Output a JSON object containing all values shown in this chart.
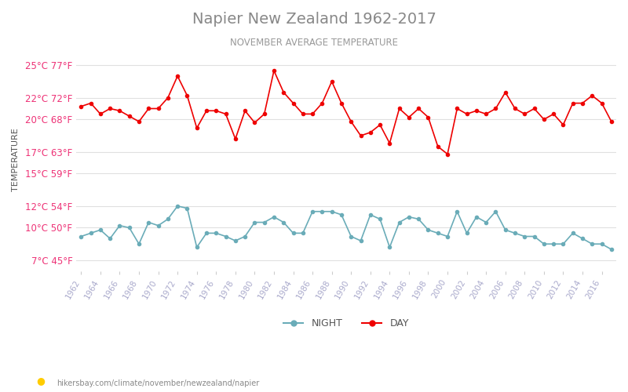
{
  "title": "Napier New Zealand 1962-2017",
  "subtitle": "NOVEMBER AVERAGE TEMPERATURE",
  "ylabel": "TEMPERATURE",
  "years": [
    1962,
    1963,
    1964,
    1965,
    1966,
    1967,
    1968,
    1969,
    1970,
    1971,
    1972,
    1973,
    1974,
    1975,
    1976,
    1977,
    1978,
    1979,
    1980,
    1981,
    1982,
    1983,
    1984,
    1985,
    1986,
    1987,
    1988,
    1989,
    1990,
    1991,
    1992,
    1993,
    1994,
    1995,
    1996,
    1997,
    1998,
    1999,
    2000,
    2001,
    2002,
    2003,
    2004,
    2005,
    2006,
    2007,
    2008,
    2009,
    2010,
    2011,
    2012,
    2013,
    2014,
    2015,
    2016,
    2017
  ],
  "day_temps": [
    21.2,
    21.5,
    20.5,
    21.0,
    20.8,
    20.3,
    19.8,
    21.0,
    21.0,
    22.0,
    24.0,
    22.2,
    19.2,
    20.8,
    20.8,
    20.5,
    18.2,
    20.8,
    19.7,
    20.5,
    24.5,
    22.5,
    21.5,
    20.5,
    20.5,
    21.5,
    23.5,
    21.5,
    19.8,
    18.5,
    18.8,
    19.5,
    17.8,
    21.0,
    20.2,
    21.0,
    20.2,
    17.5,
    16.8,
    21.0,
    20.5,
    20.8,
    20.5,
    21.0,
    22.5,
    21.0,
    20.5,
    21.0,
    20.0,
    20.5,
    19.5,
    21.5,
    21.5,
    22.2,
    21.5,
    19.8
  ],
  "night_temps": [
    9.2,
    9.5,
    9.8,
    9.0,
    10.2,
    10.0,
    8.5,
    10.5,
    10.2,
    10.8,
    12.0,
    11.8,
    8.2,
    9.5,
    9.5,
    9.2,
    8.8,
    9.2,
    10.5,
    10.5,
    11.0,
    10.5,
    9.5,
    9.5,
    11.5,
    11.5,
    11.5,
    11.2,
    9.2,
    8.8,
    11.2,
    10.8,
    8.2,
    10.5,
    11.0,
    10.8,
    9.8,
    9.5,
    9.2,
    11.5,
    9.5,
    11.0,
    10.5,
    11.5,
    9.8,
    9.5,
    9.2,
    9.2,
    8.5,
    8.5,
    8.5,
    9.5,
    9.0,
    8.5,
    8.5,
    8.0
  ],
  "day_color": "#ee0000",
  "night_color": "#6aacb8",
  "background_color": "#ffffff",
  "grid_color": "#e0e0e0",
  "title_color": "#888888",
  "subtitle_color": "#999999",
  "ylabel_color": "#555555",
  "tick_label_color": "#ee3377",
  "xtick_color": "#aaaacc",
  "yticks_celsius": [
    7,
    10,
    12,
    15,
    17,
    20,
    22,
    25
  ],
  "yticks_fahrenheit": [
    45,
    50,
    54,
    59,
    63,
    68,
    72,
    77
  ],
  "ylim": [
    6.0,
    26.5
  ],
  "legend_night": "NIGHT",
  "legend_day": "DAY",
  "footer_text": "hikersbay.com/climate/november/newzealand/napier"
}
